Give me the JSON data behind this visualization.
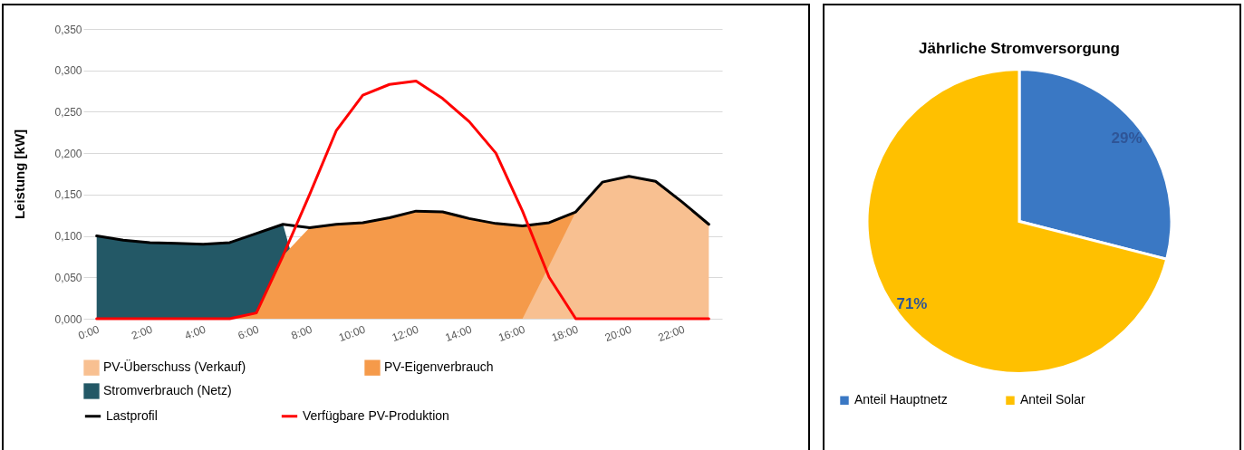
{
  "chart_data": [
    {
      "type": "area",
      "ylabel": "Leistung [kW]",
      "x": [
        0,
        1,
        2,
        3,
        4,
        5,
        6,
        7,
        8,
        9,
        10,
        11,
        12,
        13,
        14,
        15,
        16,
        17,
        18,
        19,
        20,
        21,
        22,
        23
      ],
      "xlim": [
        -0.5,
        23.5
      ],
      "xticks": [
        {
          "value": 0,
          "label": "0:00"
        },
        {
          "value": 2,
          "label": "2:00"
        },
        {
          "value": 4,
          "label": "4:00"
        },
        {
          "value": 6,
          "label": "6:00"
        },
        {
          "value": 8,
          "label": "8:00"
        },
        {
          "value": 10,
          "label": "10:00"
        },
        {
          "value": 12,
          "label": "12:00"
        },
        {
          "value": 14,
          "label": "14:00"
        },
        {
          "value": 16,
          "label": "16:00"
        },
        {
          "value": 18,
          "label": "18:00"
        },
        {
          "value": 20,
          "label": "20:00"
        },
        {
          "value": 22,
          "label": "22:00"
        }
      ],
      "ylim": [
        0,
        0.35
      ],
      "yticks": [
        {
          "value": 0,
          "label": "0,000"
        },
        {
          "value": 0.05,
          "label": "0,050"
        },
        {
          "value": 0.1,
          "label": "0,100"
        },
        {
          "value": 0.15,
          "label": "0,150"
        },
        {
          "value": 0.2,
          "label": "0,200"
        },
        {
          "value": 0.25,
          "label": "0,250"
        },
        {
          "value": 0.3,
          "label": "0,300"
        },
        {
          "value": 0.35,
          "label": "0,350"
        }
      ],
      "grid": "y",
      "legend": "bottom",
      "series": [
        {
          "name": "PV-Überschuss (Verkauf)",
          "type": "area",
          "color": "#f8c091",
          "values": [
            null,
            null,
            null,
            null,
            null,
            null,
            null,
            null,
            null,
            null,
            null,
            null,
            null,
            null,
            null,
            null,
            0,
            0.064,
            0.129,
            0.165,
            0.172,
            0.166,
            0.141,
            0.114
          ]
        },
        {
          "name": "PV-Eigenverbrauch",
          "type": "area",
          "color": "#f59a4a",
          "values": [
            null,
            null,
            null,
            null,
            null,
            0,
            0.007,
            0.076,
            0.11,
            0.114,
            0.116,
            0.122,
            0.13,
            0.129,
            0.121,
            0.115,
            0.112,
            0.116,
            0.129,
            null,
            null,
            null,
            null,
            null
          ]
        },
        {
          "name": "Stromverbrauch (Netz)",
          "type": "area",
          "color": "#235866",
          "values": [
            0.1,
            0.095,
            0.092,
            0.091,
            0.09,
            0.092,
            0.103,
            0.114,
            0,
            null,
            null,
            null,
            null,
            null,
            null,
            null,
            null,
            null,
            null,
            null,
            null,
            null,
            null,
            null
          ]
        },
        {
          "name": "Lastprofil",
          "type": "line",
          "color": "#000000",
          "values": [
            0.1,
            0.095,
            0.092,
            0.091,
            0.09,
            0.092,
            0.103,
            0.114,
            0.11,
            0.114,
            0.116,
            0.122,
            0.13,
            0.129,
            0.121,
            0.115,
            0.112,
            0.116,
            0.129,
            0.165,
            0.172,
            0.166,
            0.141,
            0.114
          ]
        },
        {
          "name": "Verfügbare PV-Produktion",
          "type": "line",
          "color": "#ff0000",
          "values": [
            0,
            0,
            0,
            0,
            0,
            0,
            0.007,
            0.076,
            0.15,
            0.227,
            0.27,
            0.283,
            0.287,
            0.266,
            0.238,
            0.2,
            0.13,
            0.05,
            0,
            0,
            0,
            0,
            0,
            0
          ]
        }
      ]
    },
    {
      "type": "pie",
      "title": "Jährliche Stromversorgung",
      "categories": [
        "Anteil Hauptnetz",
        "Anteil Solar"
      ],
      "values": [
        29,
        71
      ],
      "colors": [
        "#3a78c4",
        "#ffc000"
      ],
      "value_labels": [
        "29%",
        "71%"
      ],
      "legend": "bottom"
    }
  ]
}
